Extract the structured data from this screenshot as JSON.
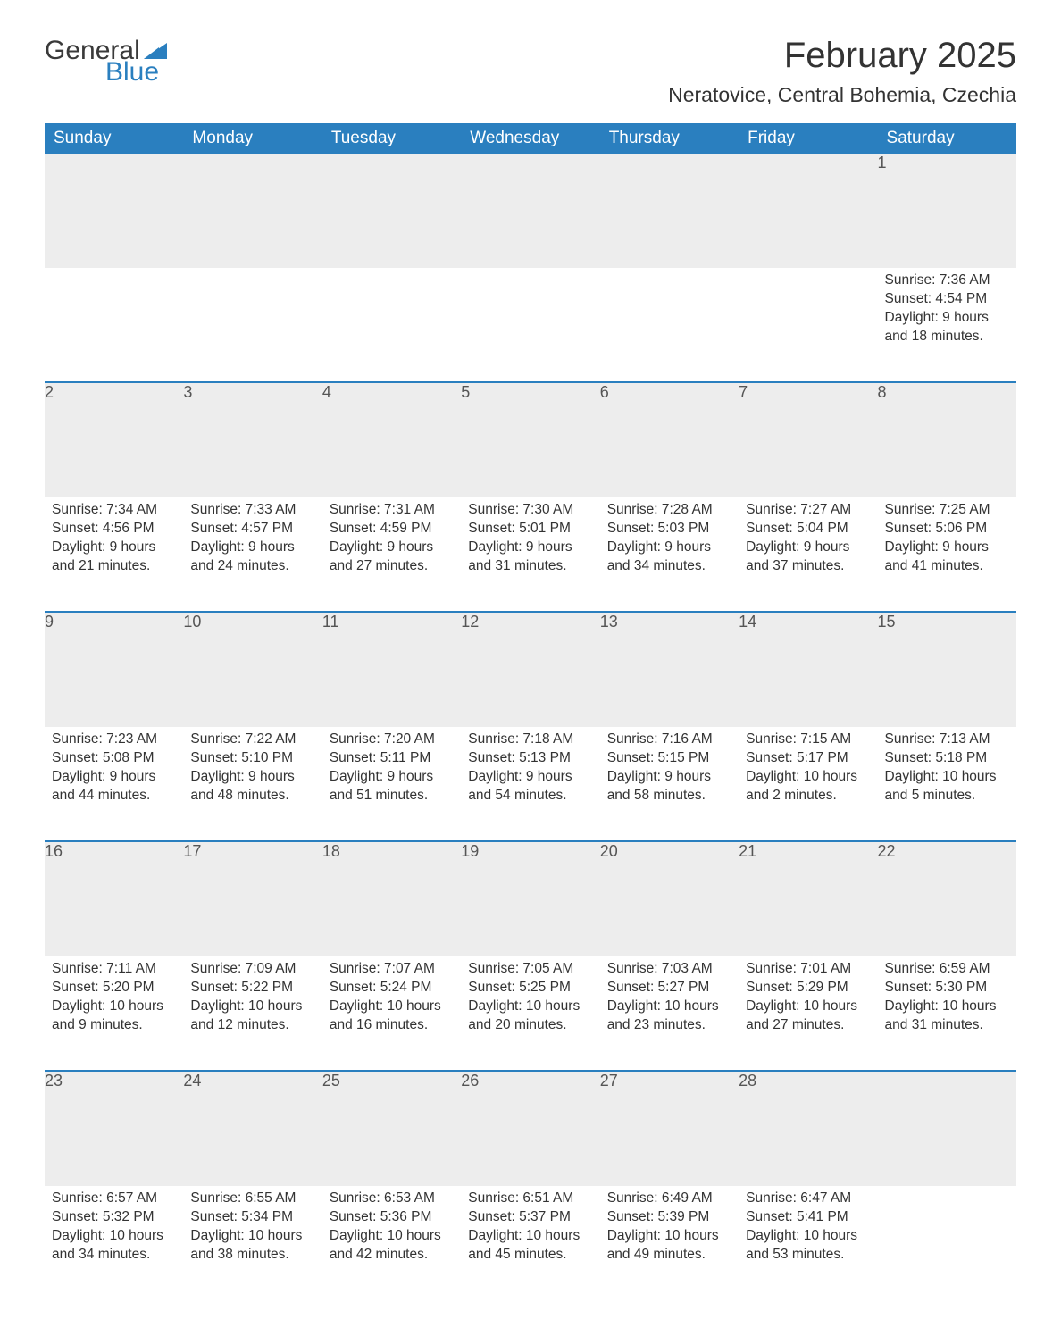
{
  "logo": {
    "text_general": "General",
    "text_blue": "Blue",
    "sail_color": "#2a7fbf"
  },
  "header": {
    "month_title": "February 2025",
    "location": "Neratovice, Central Bohemia, Czechia"
  },
  "styling": {
    "header_bg": "#2a7fbf",
    "header_text": "#ffffff",
    "daynum_bg": "#ededed",
    "body_text": "#333333",
    "font_family": "Arial",
    "title_fontsize": 40,
    "location_fontsize": 23,
    "dayheader_fontsize": 19,
    "daynum_fontsize": 18,
    "cell_fontsize": 15.5,
    "columns": 7,
    "rows": 5
  },
  "day_headers": [
    "Sunday",
    "Monday",
    "Tuesday",
    "Wednesday",
    "Thursday",
    "Friday",
    "Saturday"
  ],
  "weeks": [
    [
      null,
      null,
      null,
      null,
      null,
      null,
      {
        "n": "1",
        "sunrise": "Sunrise: 7:36 AM",
        "sunset": "Sunset: 4:54 PM",
        "daylight": "Daylight: 9 hours and 18 minutes."
      }
    ],
    [
      {
        "n": "2",
        "sunrise": "Sunrise: 7:34 AM",
        "sunset": "Sunset: 4:56 PM",
        "daylight": "Daylight: 9 hours and 21 minutes."
      },
      {
        "n": "3",
        "sunrise": "Sunrise: 7:33 AM",
        "sunset": "Sunset: 4:57 PM",
        "daylight": "Daylight: 9 hours and 24 minutes."
      },
      {
        "n": "4",
        "sunrise": "Sunrise: 7:31 AM",
        "sunset": "Sunset: 4:59 PM",
        "daylight": "Daylight: 9 hours and 27 minutes."
      },
      {
        "n": "5",
        "sunrise": "Sunrise: 7:30 AM",
        "sunset": "Sunset: 5:01 PM",
        "daylight": "Daylight: 9 hours and 31 minutes."
      },
      {
        "n": "6",
        "sunrise": "Sunrise: 7:28 AM",
        "sunset": "Sunset: 5:03 PM",
        "daylight": "Daylight: 9 hours and 34 minutes."
      },
      {
        "n": "7",
        "sunrise": "Sunrise: 7:27 AM",
        "sunset": "Sunset: 5:04 PM",
        "daylight": "Daylight: 9 hours and 37 minutes."
      },
      {
        "n": "8",
        "sunrise": "Sunrise: 7:25 AM",
        "sunset": "Sunset: 5:06 PM",
        "daylight": "Daylight: 9 hours and 41 minutes."
      }
    ],
    [
      {
        "n": "9",
        "sunrise": "Sunrise: 7:23 AM",
        "sunset": "Sunset: 5:08 PM",
        "daylight": "Daylight: 9 hours and 44 minutes."
      },
      {
        "n": "10",
        "sunrise": "Sunrise: 7:22 AM",
        "sunset": "Sunset: 5:10 PM",
        "daylight": "Daylight: 9 hours and 48 minutes."
      },
      {
        "n": "11",
        "sunrise": "Sunrise: 7:20 AM",
        "sunset": "Sunset: 5:11 PM",
        "daylight": "Daylight: 9 hours and 51 minutes."
      },
      {
        "n": "12",
        "sunrise": "Sunrise: 7:18 AM",
        "sunset": "Sunset: 5:13 PM",
        "daylight": "Daylight: 9 hours and 54 minutes."
      },
      {
        "n": "13",
        "sunrise": "Sunrise: 7:16 AM",
        "sunset": "Sunset: 5:15 PM",
        "daylight": "Daylight: 9 hours and 58 minutes."
      },
      {
        "n": "14",
        "sunrise": "Sunrise: 7:15 AM",
        "sunset": "Sunset: 5:17 PM",
        "daylight": "Daylight: 10 hours and 2 minutes."
      },
      {
        "n": "15",
        "sunrise": "Sunrise: 7:13 AM",
        "sunset": "Sunset: 5:18 PM",
        "daylight": "Daylight: 10 hours and 5 minutes."
      }
    ],
    [
      {
        "n": "16",
        "sunrise": "Sunrise: 7:11 AM",
        "sunset": "Sunset: 5:20 PM",
        "daylight": "Daylight: 10 hours and 9 minutes."
      },
      {
        "n": "17",
        "sunrise": "Sunrise: 7:09 AM",
        "sunset": "Sunset: 5:22 PM",
        "daylight": "Daylight: 10 hours and 12 minutes."
      },
      {
        "n": "18",
        "sunrise": "Sunrise: 7:07 AM",
        "sunset": "Sunset: 5:24 PM",
        "daylight": "Daylight: 10 hours and 16 minutes."
      },
      {
        "n": "19",
        "sunrise": "Sunrise: 7:05 AM",
        "sunset": "Sunset: 5:25 PM",
        "daylight": "Daylight: 10 hours and 20 minutes."
      },
      {
        "n": "20",
        "sunrise": "Sunrise: 7:03 AM",
        "sunset": "Sunset: 5:27 PM",
        "daylight": "Daylight: 10 hours and 23 minutes."
      },
      {
        "n": "21",
        "sunrise": "Sunrise: 7:01 AM",
        "sunset": "Sunset: 5:29 PM",
        "daylight": "Daylight: 10 hours and 27 minutes."
      },
      {
        "n": "22",
        "sunrise": "Sunrise: 6:59 AM",
        "sunset": "Sunset: 5:30 PM",
        "daylight": "Daylight: 10 hours and 31 minutes."
      }
    ],
    [
      {
        "n": "23",
        "sunrise": "Sunrise: 6:57 AM",
        "sunset": "Sunset: 5:32 PM",
        "daylight": "Daylight: 10 hours and 34 minutes."
      },
      {
        "n": "24",
        "sunrise": "Sunrise: 6:55 AM",
        "sunset": "Sunset: 5:34 PM",
        "daylight": "Daylight: 10 hours and 38 minutes."
      },
      {
        "n": "25",
        "sunrise": "Sunrise: 6:53 AM",
        "sunset": "Sunset: 5:36 PM",
        "daylight": "Daylight: 10 hours and 42 minutes."
      },
      {
        "n": "26",
        "sunrise": "Sunrise: 6:51 AM",
        "sunset": "Sunset: 5:37 PM",
        "daylight": "Daylight: 10 hours and 45 minutes."
      },
      {
        "n": "27",
        "sunrise": "Sunrise: 6:49 AM",
        "sunset": "Sunset: 5:39 PM",
        "daylight": "Daylight: 10 hours and 49 minutes."
      },
      {
        "n": "28",
        "sunrise": "Sunrise: 6:47 AM",
        "sunset": "Sunset: 5:41 PM",
        "daylight": "Daylight: 10 hours and 53 minutes."
      },
      null
    ]
  ]
}
